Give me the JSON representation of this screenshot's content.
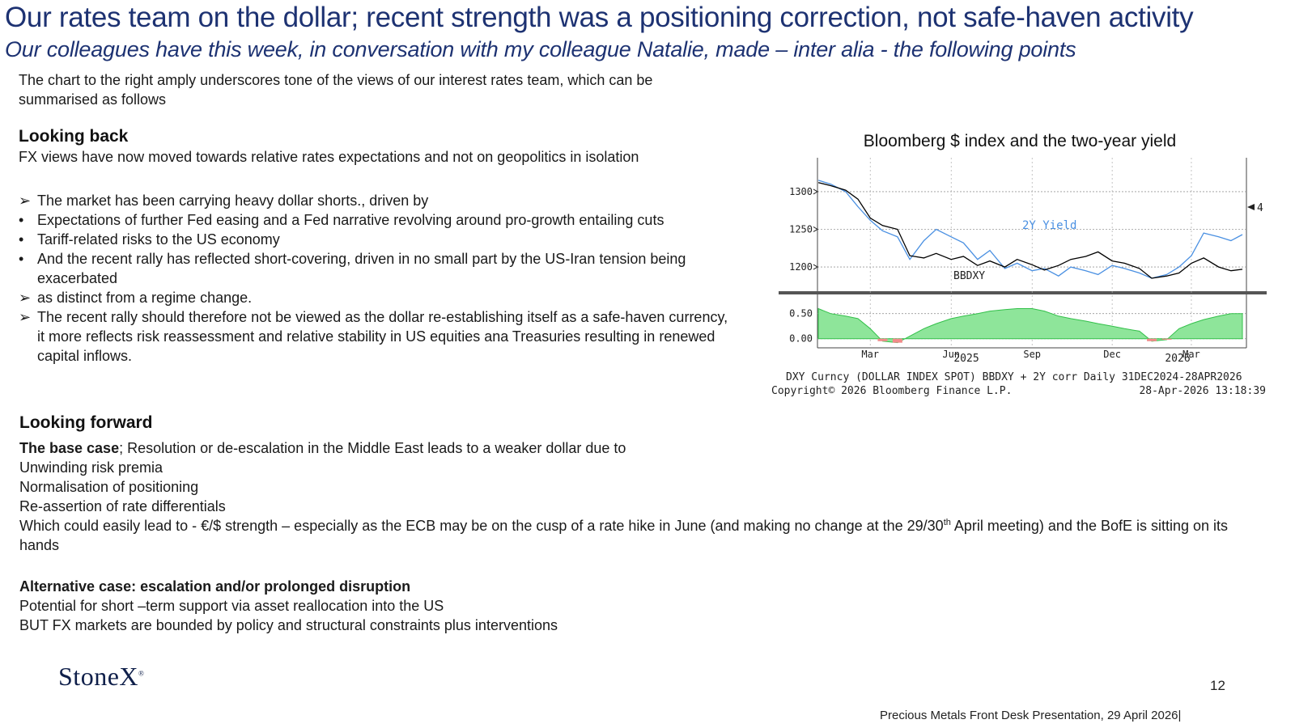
{
  "header": {
    "title": "Our rates team on the dollar; recent strength was a positioning correction, not safe-haven activity",
    "subtitle": "Our colleagues have this week, in conversation with my colleague Natalie,  made – inter alia - the following points"
  },
  "intro": "The chart to the right amply underscores tone of the views of our interest rates team, which can be summarised as follows",
  "looking_back": {
    "heading": "Looking back",
    "subheading": "FX views have now moved towards relative rates expectations and not on geopolitics in isolation",
    "bullets": [
      {
        "marker": "➢",
        "text": "The market has been carrying heavy dollar shorts., driven by"
      },
      {
        "marker": "•",
        "text": "Expectations of further Fed easing  and a Fed narrative revolving around pro-growth entailing cuts"
      },
      {
        "marker": "•",
        "text": "Tariff-related risks to the US economy"
      },
      {
        "marker": "•",
        "text": "And the recent rally has reflected short-covering, driven in no small part by the US-Iran tension being exacerbated"
      },
      {
        "marker": "➢",
        "text": " as distinct from a regime change."
      },
      {
        "marker": "➢",
        "text": "The recent rally should therefore not be viewed as the dollar re-establishing itself as a safe-haven currency, it more reflects risk reassessment and relative stability in US equities ana Treasuries resulting in renewed capital inflows."
      }
    ]
  },
  "looking_forward": {
    "heading": "Looking forward",
    "base_label": "The base case",
    "base_text": "; Resolution or de-escalation in the Middle East leads to a weaker dollar due to",
    "lines": [
      "Unwinding risk premia",
      "Normalisation of positioning",
      "Re-assertion of rate differentials"
    ],
    "which_pre": "Which could easily lead to  - €/$ strength – especially as the ECB may be on the cusp of a rate hike in June (and making no change at the 29/30",
    "which_sup": "th",
    "which_post": " April meeting) and the BofE is sitting on its hands",
    "alt_heading": "Alternative case: escalation and/or prolonged disruption",
    "alt_lines": [
      "Potential for short –term support via asset reallocation into the US",
      "BUT FX markets are bounded  by policy and structural constraints plus interventions"
    ]
  },
  "chart_data": {
    "type": "line",
    "title": "Bloomberg $ index and the two-year yield",
    "upper_panel": {
      "y_ticks": [
        "1300",
        "1250",
        "1200"
      ],
      "ylim": [
        1170,
        1345
      ],
      "right_marker": "4",
      "series": [
        {
          "name": "BBDXY",
          "color": "#000000",
          "x": [
            "2025-01-01",
            "2025-01-15",
            "2025-02-01",
            "2025-02-15",
            "2025-03-01",
            "2025-03-15",
            "2025-04-01",
            "2025-04-15",
            "2025-05-01",
            "2025-05-15",
            "2025-06-01",
            "2025-06-15",
            "2025-07-01",
            "2025-07-15",
            "2025-08-01",
            "2025-08-15",
            "2025-09-01",
            "2025-09-15",
            "2025-10-01",
            "2025-10-15",
            "2025-11-01",
            "2025-11-15",
            "2025-12-01",
            "2025-12-15",
            "2026-01-01",
            "2026-01-15",
            "2026-02-01",
            "2026-02-15",
            "2026-03-01",
            "2026-03-15",
            "2026-04-01",
            "2026-04-15",
            "2026-04-28"
          ],
          "y": [
            1312,
            1308,
            1302,
            1290,
            1265,
            1255,
            1250,
            1215,
            1212,
            1218,
            1210,
            1214,
            1202,
            1208,
            1200,
            1210,
            1203,
            1196,
            1202,
            1210,
            1214,
            1220,
            1208,
            1205,
            1198,
            1185,
            1188,
            1192,
            1205,
            1212,
            1200,
            1195,
            1197
          ]
        },
        {
          "name": "2Y Yield",
          "color": "#4a90e2",
          "x": [
            "2025-01-01",
            "2025-01-15",
            "2025-02-01",
            "2025-02-15",
            "2025-03-01",
            "2025-03-15",
            "2025-04-01",
            "2025-04-15",
            "2025-05-01",
            "2025-05-15",
            "2025-06-01",
            "2025-06-15",
            "2025-07-01",
            "2025-07-15",
            "2025-08-01",
            "2025-08-15",
            "2025-09-01",
            "2025-09-15",
            "2025-10-01",
            "2025-10-15",
            "2025-11-01",
            "2025-11-15",
            "2025-12-01",
            "2025-12-15",
            "2026-01-01",
            "2026-01-15",
            "2026-02-01",
            "2026-02-15",
            "2026-03-01",
            "2026-03-15",
            "2026-04-01",
            "2026-04-15",
            "2026-04-28"
          ],
          "y": [
            1315,
            1310,
            1300,
            1280,
            1262,
            1248,
            1240,
            1210,
            1235,
            1250,
            1240,
            1232,
            1210,
            1222,
            1198,
            1205,
            1195,
            1198,
            1188,
            1200,
            1195,
            1190,
            1202,
            1198,
            1192,
            1185,
            1190,
            1200,
            1215,
            1245,
            1240,
            1235,
            1243
          ]
        }
      ],
      "labels": {
        "bbdxy": "BBDXY",
        "yield": "2Y Yield"
      }
    },
    "lower_panel": {
      "y_ticks": [
        "0.50",
        "0.00"
      ],
      "ylim": [
        -0.15,
        0.85
      ],
      "series": [
        {
          "name": "corr",
          "color": "#33c04a",
          "x": [
            "2025-01-01",
            "2025-01-15",
            "2025-02-01",
            "2025-02-15",
            "2025-03-01",
            "2025-03-15",
            "2025-04-01",
            "2025-04-15",
            "2025-05-01",
            "2025-05-15",
            "2025-06-01",
            "2025-06-15",
            "2025-07-01",
            "2025-07-15",
            "2025-08-01",
            "2025-08-15",
            "2025-09-01",
            "2025-09-15",
            "2025-10-01",
            "2025-10-15",
            "2025-11-01",
            "2025-11-15",
            "2025-12-01",
            "2025-12-15",
            "2026-01-01",
            "2026-01-15",
            "2026-02-01",
            "2026-02-15",
            "2026-03-01",
            "2026-03-15",
            "2026-04-01",
            "2026-04-15",
            "2026-04-28"
          ],
          "y": [
            0.6,
            0.5,
            0.45,
            0.4,
            0.2,
            -0.05,
            -0.08,
            0.05,
            0.2,
            0.3,
            0.4,
            0.45,
            0.5,
            0.55,
            0.58,
            0.6,
            0.6,
            0.55,
            0.45,
            0.4,
            0.35,
            0.3,
            0.25,
            0.2,
            0.15,
            -0.05,
            -0.02,
            0.2,
            0.3,
            0.38,
            0.45,
            0.5,
            0.5
          ]
        }
      ]
    },
    "x_ticks": [
      "Mar",
      "Jun",
      "Sep",
      "Dec",
      "Mar"
    ],
    "x_years": [
      "2025",
      "2026"
    ],
    "caption_line1": "DXY Curncy (DOLLAR INDEX SPOT) BBDXY + 2Y corr Daily 31DEC2024-28APR2026",
    "caption_line2_left": "Copyright© 2026 Bloomberg Finance L.P.",
    "caption_line2_right": "28-Apr-2026 13:18:39"
  },
  "footer": {
    "logo": "StoneX",
    "logo_mark": "®",
    "page_number": "12",
    "presentation": "Precious Metals Front Desk Presentation, 29 April 2026|"
  }
}
